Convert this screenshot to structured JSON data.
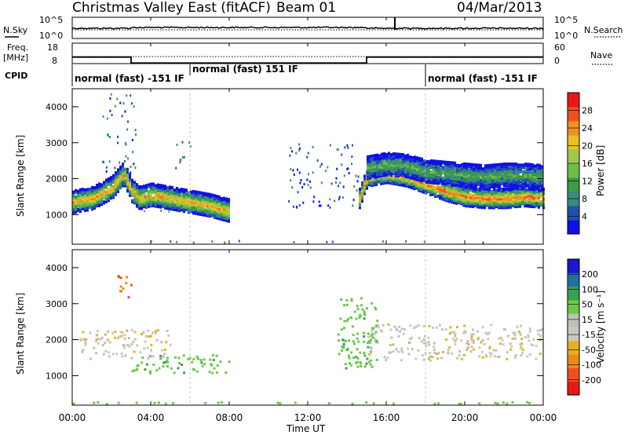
{
  "header": {
    "title": "Christmas Valley East (fitACF)",
    "beam": "Beam 01",
    "date": "04/Mar/2013"
  },
  "noise_panel": {
    "left_label": "N.Sky",
    "right_label": "N.Search",
    "left_ticks": [
      "10^5",
      "10^0"
    ],
    "right_ticks": [
      "10^5",
      "10^0"
    ]
  },
  "freq_panel": {
    "left_label_1": "Freq.",
    "left_label_2": "[MHz]",
    "right_label": "Nave",
    "left_ticks": [
      "18",
      "8"
    ],
    "right_ticks": [
      "60",
      "0"
    ],
    "freq_steps": [
      {
        "start_h": 0,
        "end_h": 3.0,
        "value": 11.2
      },
      {
        "start_h": 3.0,
        "end_h": 15.0,
        "value": 8.3
      },
      {
        "start_h": 15.0,
        "end_h": 24.0,
        "value": 11.2
      }
    ]
  },
  "cpid": {
    "label": "CPID",
    "segments": [
      {
        "start_h": 0,
        "text": "normal (fast) -151 IF"
      },
      {
        "start_h": 6,
        "text": "normal (fast) 151 IF"
      },
      {
        "start_h": 18,
        "text": "normal (fast) -151 IF"
      }
    ]
  },
  "chart_data": [
    {
      "type": "heatmap",
      "quantity": "power",
      "ylabel": "Slant Range [km]",
      "ylim": [
        180,
        4500
      ],
      "yticks": [
        "1000",
        "2000",
        "3000",
        "4000"
      ],
      "xlim": [
        0,
        24
      ],
      "colorbar_label": "Power [dB]",
      "colorbar_ticks": [
        "28",
        "24",
        "20",
        "16",
        "12",
        "8",
        "4"
      ],
      "colors": [
        "#1010e6",
        "#2050b0",
        "#3a8a80",
        "#3c9a4a",
        "#6cbe4a",
        "#a0c84a",
        "#e8c020",
        "#f09020",
        "#f05020",
        "#e81818"
      ],
      "bands": [
        {
          "t": [
            0.0,
            1.0,
            2.0,
            2.6,
            3.0,
            3.4,
            4.0,
            5.0,
            6.0,
            7.0,
            8.0
          ],
          "r": [
            1400,
            1500,
            1800,
            2200,
            1700,
            1500,
            1600,
            1500,
            1400,
            1300,
            1150
          ],
          "w": 300,
          "p": 22
        },
        {
          "t": [
            14.6,
            15.0,
            16.0,
            17.0,
            18.0,
            19.0,
            20.0,
            21.0,
            22.0,
            23.0,
            24.0
          ],
          "r": [
            1500,
            2100,
            2200,
            2100,
            1900,
            1700,
            1550,
            1500,
            1500,
            1550,
            1500
          ],
          "w": 260,
          "p": 25
        },
        {
          "t": [
            15.0,
            16.0,
            17.0,
            18.0,
            19.0,
            20.0,
            21.0,
            22.0,
            23.0,
            24.0
          ],
          "r": [
            2350,
            2450,
            2400,
            2250,
            2200,
            2150,
            2100,
            2150,
            2150,
            2100
          ],
          "w": 300,
          "p": 12
        }
      ],
      "patches": [
        {
          "t0": 1.5,
          "t1": 3.2,
          "r0": 2200,
          "r1": 4400,
          "p": 6
        },
        {
          "t0": 3.2,
          "t1": 5.5,
          "r0": 1100,
          "r1": 1600,
          "p": 10
        },
        {
          "t0": 5.0,
          "t1": 6.0,
          "r0": 2300,
          "r1": 3100,
          "p": 8
        },
        {
          "t0": 11.0,
          "t1": 14.6,
          "r0": 1200,
          "r1": 3000,
          "p": 5
        },
        {
          "t0": 0.0,
          "t1": 24.0,
          "r0": 180,
          "r1": 300,
          "p": 8
        }
      ]
    },
    {
      "type": "heatmap",
      "quantity": "velocity",
      "ylabel": "Slant Range [km]",
      "ylim": [
        180,
        4500
      ],
      "yticks": [
        "1000",
        "2000",
        "3000",
        "4000"
      ],
      "xlim": [
        0,
        24
      ],
      "xticks": [
        "00:00",
        "04:00",
        "08:00",
        "12:00",
        "16:00",
        "20:00",
        "00:00"
      ],
      "xlabel": "Time UT",
      "colorbar_label": "Velocity [m s⁻¹]",
      "colorbar_ticks": [
        "200",
        "100",
        "50",
        "15",
        "-15",
        "-50",
        "-100",
        "-200"
      ],
      "colors": [
        "#e81818",
        "#f05020",
        "#f08a10",
        "#e8b020",
        "#c8c8c0",
        "#c0c0b8",
        "#6cc84a",
        "#3aa050",
        "#2070a0",
        "#1818d0"
      ],
      "regions": [
        {
          "t0": 0.3,
          "t1": 5.0,
          "r0": 1500,
          "r1": 2300,
          "v": -5
        },
        {
          "t0": 3.0,
          "t1": 8.0,
          "r0": 1100,
          "r1": 1600,
          "v": 40
        },
        {
          "t0": 15.0,
          "t1": 24.0,
          "r0": 1450,
          "r1": 2450,
          "v": -5
        },
        {
          "t0": 13.5,
          "t1": 15.5,
          "r0": 1200,
          "r1": 3200,
          "v": 40
        },
        {
          "t0": 0.0,
          "t1": 24.0,
          "r0": 180,
          "r1": 300,
          "v": 30
        },
        {
          "t0": 2.3,
          "t1": 3.0,
          "r0": 3200,
          "r1": 3800,
          "v": -100
        }
      ]
    }
  ]
}
